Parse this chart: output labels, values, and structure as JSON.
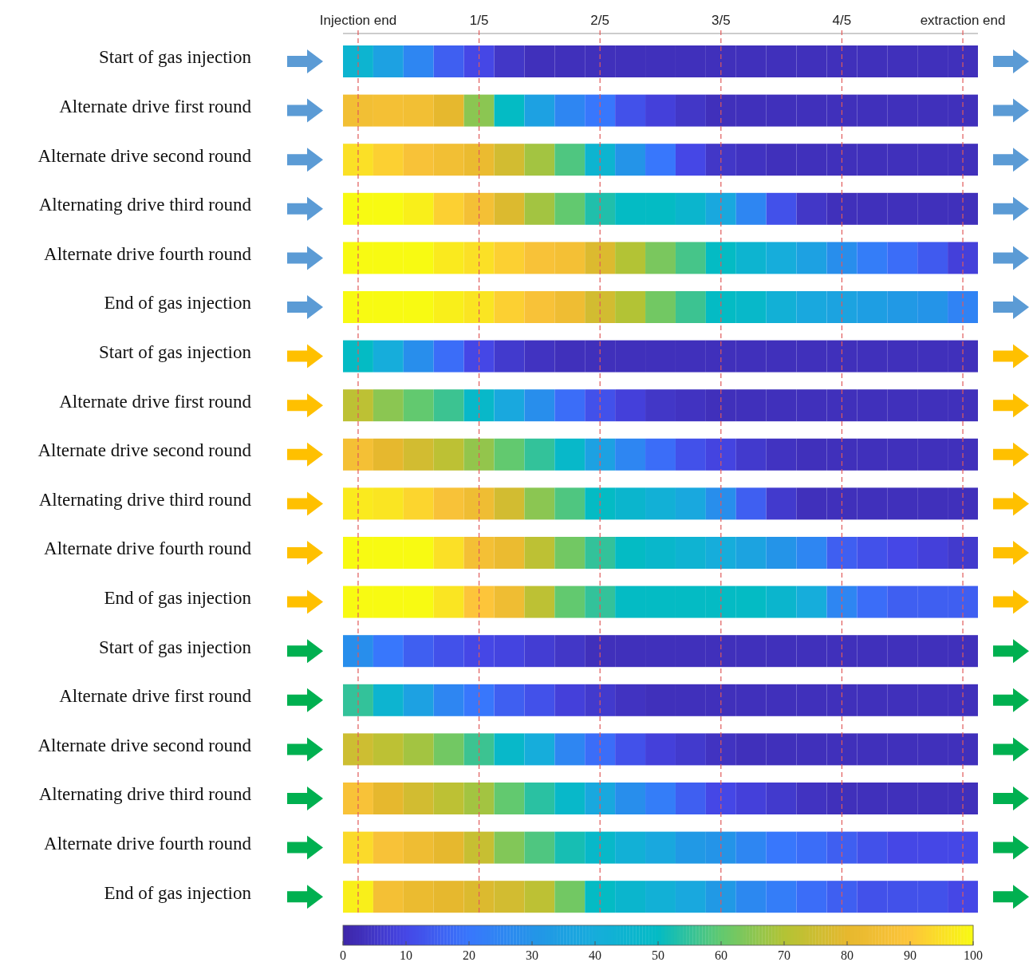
{
  "chart_data": {
    "type": "heatmap",
    "x": [
      0,
      0.05,
      0.1,
      0.15,
      0.2,
      0.25,
      0.3,
      0.35,
      0.4,
      0.45,
      0.5,
      0.55,
      0.6,
      0.65,
      0.7,
      0.75,
      0.8,
      0.85,
      0.9,
      0.95,
      1
    ],
    "xlim": [
      -0.025,
      1.025
    ],
    "xticks": [
      {
        "value": 0,
        "label": "Injection end"
      },
      {
        "value": 0.2,
        "label": "1/5"
      },
      {
        "value": 0.4,
        "label": "2/5"
      },
      {
        "value": 0.6,
        "label": "3/5"
      },
      {
        "value": 0.8,
        "label": "4/5"
      },
      {
        "value": 1,
        "label": "extraction end"
      }
    ],
    "y_categories": [
      "Start of gas injection",
      "Alternate drive first round",
      "Alternate drive second round",
      "Alternating drive third round",
      "Alternate drive fourth round",
      "End of gas injection",
      "Start of gas injection",
      "Alternate drive first round",
      "Alternate drive second round",
      "Alternating drive third round",
      "Alternate drive fourth round",
      "End of gas injection",
      "Start of gas injection",
      "Alternate drive first round",
      "Alternate drive second round",
      "Alternating drive third round",
      "Alternate drive fourth round",
      "End of gas injection"
    ],
    "cells": [
      [
        45,
        35,
        25,
        15,
        10,
        5,
        3,
        3,
        3,
        3,
        3,
        3,
        3,
        3,
        3,
        3,
        3,
        3,
        3,
        3,
        3
      ],
      [
        85,
        86,
        85,
        80,
        65,
        50,
        35,
        25,
        20,
        12,
        8,
        5,
        3,
        3,
        3,
        3,
        3,
        3,
        3,
        3,
        3
      ],
      [
        95,
        92,
        88,
        85,
        82,
        76,
        68,
        58,
        45,
        30,
        20,
        10,
        5,
        4,
        3,
        3,
        3,
        3,
        3,
        3,
        3
      ],
      [
        100,
        100,
        98,
        92,
        86,
        78,
        68,
        60,
        53,
        50,
        50,
        46,
        38,
        25,
        12,
        5,
        3,
        3,
        3,
        3,
        3
      ],
      [
        100,
        100,
        100,
        97,
        95,
        92,
        88,
        86,
        78,
        70,
        63,
        57,
        50,
        45,
        40,
        35,
        28,
        22,
        18,
        14,
        8
      ],
      [
        100,
        100,
        100,
        98,
        96,
        92,
        88,
        84,
        76,
        70,
        62,
        56,
        50,
        48,
        42,
        38,
        36,
        34,
        32,
        30,
        24
      ],
      [
        50,
        40,
        28,
        18,
        10,
        6,
        4,
        3,
        3,
        3,
        3,
        3,
        3,
        3,
        3,
        3,
        3,
        3,
        3,
        3,
        3
      ],
      [
        72,
        65,
        60,
        56,
        48,
        38,
        28,
        18,
        12,
        8,
        5,
        4,
        3,
        3,
        3,
        3,
        3,
        3,
        3,
        3,
        3
      ],
      [
        86,
        80,
        76,
        72,
        66,
        60,
        55,
        48,
        35,
        25,
        18,
        12,
        9,
        6,
        4,
        3,
        3,
        3,
        3,
        3,
        3
      ],
      [
        97,
        96,
        93,
        88,
        84,
        76,
        65,
        58,
        50,
        46,
        42,
        38,
        28,
        15,
        6,
        3,
        3,
        3,
        3,
        3,
        3
      ],
      [
        100,
        100,
        100,
        95,
        86,
        82,
        72,
        62,
        55,
        50,
        47,
        44,
        40,
        36,
        30,
        25,
        15,
        12,
        10,
        8,
        6
      ],
      [
        100,
        100,
        100,
        96,
        90,
        84,
        72,
        60,
        55,
        50,
        50,
        50,
        50,
        50,
        46,
        40,
        25,
        18,
        15,
        15,
        15
      ],
      [
        28,
        20,
        15,
        12,
        10,
        9,
        7,
        5,
        3,
        3,
        3,
        3,
        3,
        3,
        3,
        3,
        3,
        3,
        3,
        3,
        3
      ],
      [
        55,
        45,
        35,
        25,
        20,
        15,
        12,
        8,
        6,
        4,
        3,
        3,
        3,
        3,
        3,
        3,
        3,
        3,
        3,
        3,
        3
      ],
      [
        75,
        72,
        68,
        62,
        56,
        48,
        40,
        25,
        18,
        12,
        8,
        6,
        4,
        3,
        3,
        3,
        3,
        3,
        3,
        3,
        3
      ],
      [
        88,
        80,
        76,
        72,
        68,
        60,
        54,
        48,
        38,
        28,
        22,
        15,
        10,
        8,
        6,
        4,
        3,
        3,
        3,
        3,
        3
      ],
      [
        94,
        88,
        84,
        80,
        74,
        64,
        58,
        52,
        48,
        42,
        38,
        32,
        30,
        25,
        20,
        18,
        15,
        12,
        10,
        10,
        10
      ],
      [
        98,
        86,
        82,
        80,
        78,
        76,
        72,
        62,
        50,
        46,
        42,
        38,
        32,
        26,
        22,
        18,
        15,
        12,
        12,
        12,
        10
      ]
    ],
    "clim": [
      0,
      100
    ],
    "cticks": [
      0,
      10,
      20,
      30,
      40,
      50,
      60,
      70,
      80,
      90,
      100
    ],
    "ref_lines": [
      {
        "axis": "x",
        "value": 0,
        "color": "#e05a5a",
        "line_style": "dashed"
      },
      {
        "axis": "x",
        "value": 0.2,
        "color": "#e05a5a",
        "line_style": "dashed"
      },
      {
        "axis": "x",
        "value": 0.4,
        "color": "#e05a5a",
        "line_style": "dashed"
      },
      {
        "axis": "x",
        "value": 0.6,
        "color": "#e05a5a",
        "line_style": "dashed"
      },
      {
        "axis": "x",
        "value": 0.8,
        "color": "#e05a5a",
        "line_style": "dashed"
      },
      {
        "axis": "x",
        "value": 1,
        "color": "#e05a5a",
        "line_style": "dashed"
      }
    ]
  }
}
